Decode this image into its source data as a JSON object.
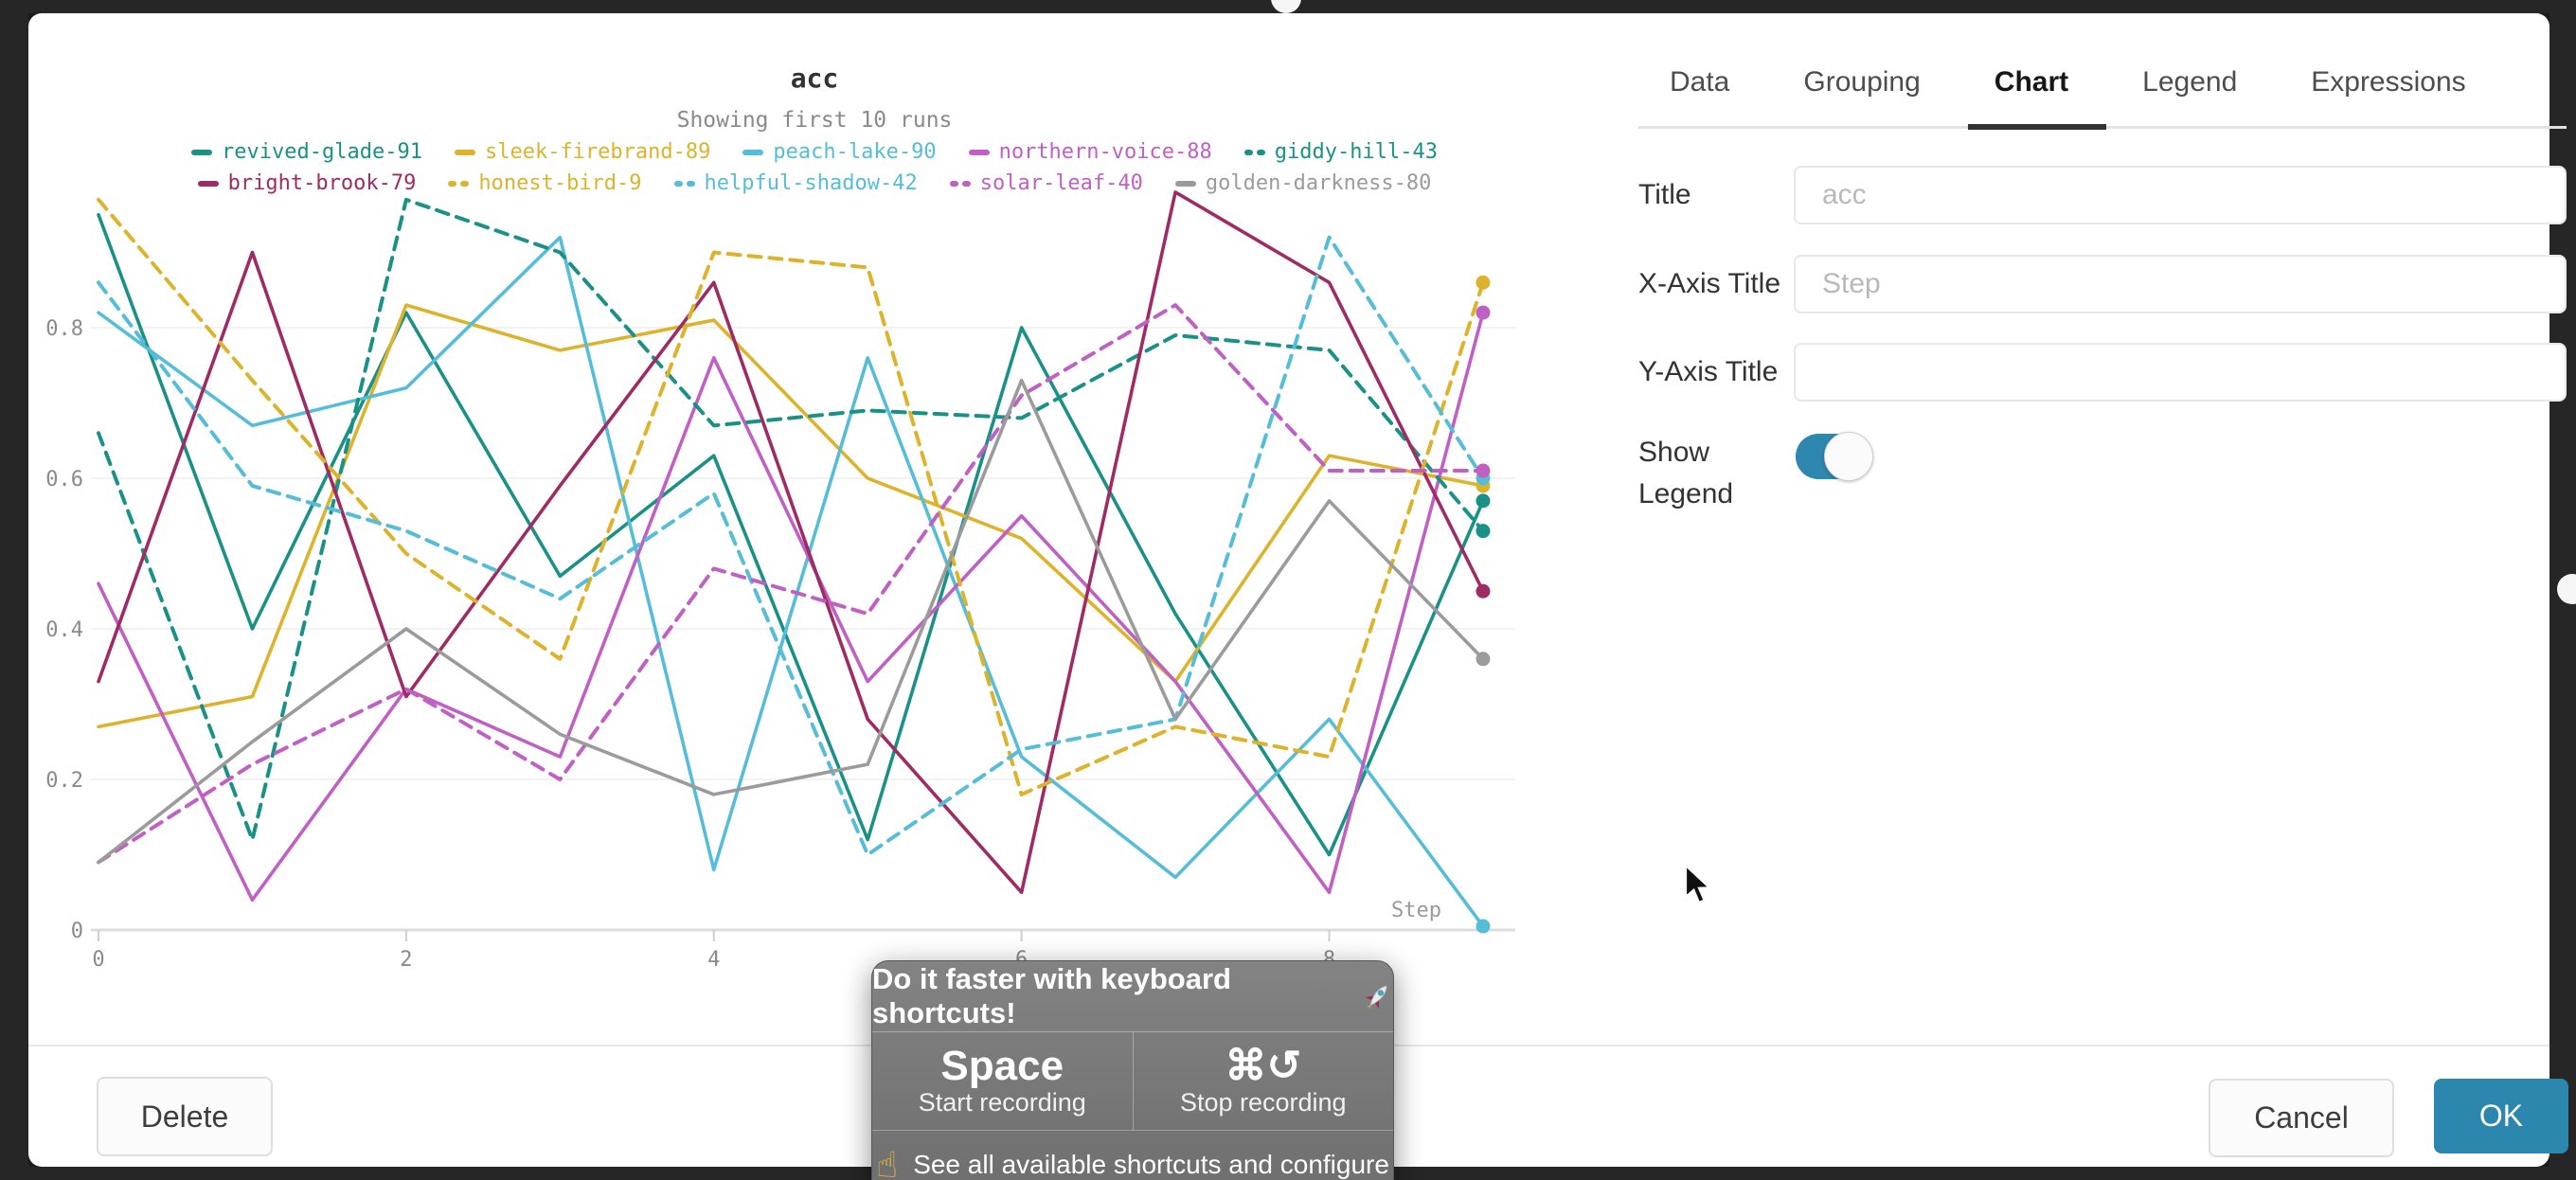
{
  "chrome": {
    "note": "dark background frame around dialog"
  },
  "chart": {
    "step_label": "Step"
  },
  "chart_data": {
    "type": "line",
    "title": "acc",
    "subtitle": "Showing first 10 runs",
    "xlabel": "Step",
    "ylabel": "",
    "x": [
      0,
      1,
      2,
      3,
      4,
      5,
      6,
      7,
      8,
      9
    ],
    "ylim": [
      0,
      1.0
    ],
    "grid": true,
    "legend_position": "top",
    "yticks": [
      {
        "label": "0",
        "v": 0
      },
      {
        "label": "0.2",
        "v": 0.2
      },
      {
        "label": "0.4",
        "v": 0.4
      },
      {
        "label": "0.6",
        "v": 0.6
      },
      {
        "label": "0.8",
        "v": 0.8
      }
    ],
    "xticks": [
      {
        "label": "0",
        "v": 0
      },
      {
        "label": "2",
        "v": 2
      },
      {
        "label": "4",
        "v": 4
      },
      {
        "label": "6",
        "v": 6
      },
      {
        "label": "8",
        "v": 8
      }
    ],
    "series": [
      {
        "name": "revived-glade-91",
        "color": "#1a9187",
        "dash": false,
        "values": [
          0.95,
          0.4,
          0.82,
          0.47,
          0.63,
          0.12,
          0.8,
          0.42,
          0.1,
          0.57
        ]
      },
      {
        "name": "sleek-firebrand-89",
        "color": "#ddb32b",
        "dash": false,
        "values": [
          0.27,
          0.31,
          0.83,
          0.77,
          0.81,
          0.6,
          0.52,
          0.33,
          0.63,
          0.59
        ]
      },
      {
        "name": "peach-lake-90",
        "color": "#56bdd9",
        "dash": false,
        "values": [
          0.82,
          0.67,
          0.72,
          0.92,
          0.08,
          0.76,
          0.23,
          0.07,
          0.28,
          0.005
        ]
      },
      {
        "name": "northern-voice-88",
        "color": "#c05fc4",
        "dash": false,
        "values": [
          0.46,
          0.04,
          0.32,
          0.23,
          0.76,
          0.33,
          0.55,
          0.33,
          0.05,
          0.82
        ]
      },
      {
        "name": "giddy-hill-43",
        "color": "#1a9187",
        "dash": true,
        "values": [
          0.66,
          0.12,
          0.97,
          0.9,
          0.67,
          0.69,
          0.68,
          0.79,
          0.77,
          0.53
        ]
      },
      {
        "name": "bright-brook-79",
        "color": "#9e2b63",
        "dash": false,
        "values": [
          0.33,
          0.9,
          0.31,
          0.59,
          0.86,
          0.28,
          0.05,
          0.98,
          0.86,
          0.45
        ]
      },
      {
        "name": "honest-bird-9",
        "color": "#ddb32b",
        "dash": true,
        "values": [
          0.97,
          0.73,
          0.5,
          0.36,
          0.9,
          0.88,
          0.18,
          0.27,
          0.23,
          0.86
        ]
      },
      {
        "name": "helpful-shadow-42",
        "color": "#56bdd9",
        "dash": true,
        "values": [
          0.86,
          0.59,
          0.53,
          0.44,
          0.58,
          0.1,
          0.24,
          0.28,
          0.92,
          0.6
        ]
      },
      {
        "name": "solar-leaf-40",
        "color": "#c05fc4",
        "dash": true,
        "values": [
          0.09,
          0.22,
          0.32,
          0.2,
          0.48,
          0.42,
          0.71,
          0.83,
          0.61,
          0.61
        ]
      },
      {
        "name": "golden-darkness-80",
        "color": "#9b9b9b",
        "dash": false,
        "values": [
          0.09,
          0.25,
          0.4,
          0.26,
          0.18,
          0.22,
          0.73,
          0.28,
          0.57,
          0.36
        ]
      }
    ]
  },
  "panel": {
    "tabs": [
      {
        "label": "Data",
        "active": false
      },
      {
        "label": "Grouping",
        "active": false
      },
      {
        "label": "Chart",
        "active": true
      },
      {
        "label": "Legend",
        "active": false
      },
      {
        "label": "Expressions",
        "active": false
      }
    ],
    "fields": [
      {
        "label": "Title",
        "placeholder": "acc",
        "value": ""
      },
      {
        "label": "X-Axis Title",
        "placeholder": "Step",
        "value": ""
      },
      {
        "label": "Y-Axis Title",
        "placeholder": "",
        "value": ""
      }
    ],
    "show_legend": {
      "label": "Show Legend",
      "on": true
    }
  },
  "footer": {
    "delete_label": "Delete",
    "cancel_label": "Cancel",
    "ok_label": "OK"
  },
  "shortcuts_tooltip": {
    "title": "Do it faster with keyboard shortcuts!",
    "rocket_icon": "rocket-emoji",
    "keys": [
      {
        "key": "Space",
        "caption": "Start recording"
      },
      {
        "key": "⌘↺",
        "caption": "Stop recording"
      }
    ],
    "see_all": "See all available shortcuts and configure",
    "pointer_icon": "index-pointing-up-emoji"
  }
}
